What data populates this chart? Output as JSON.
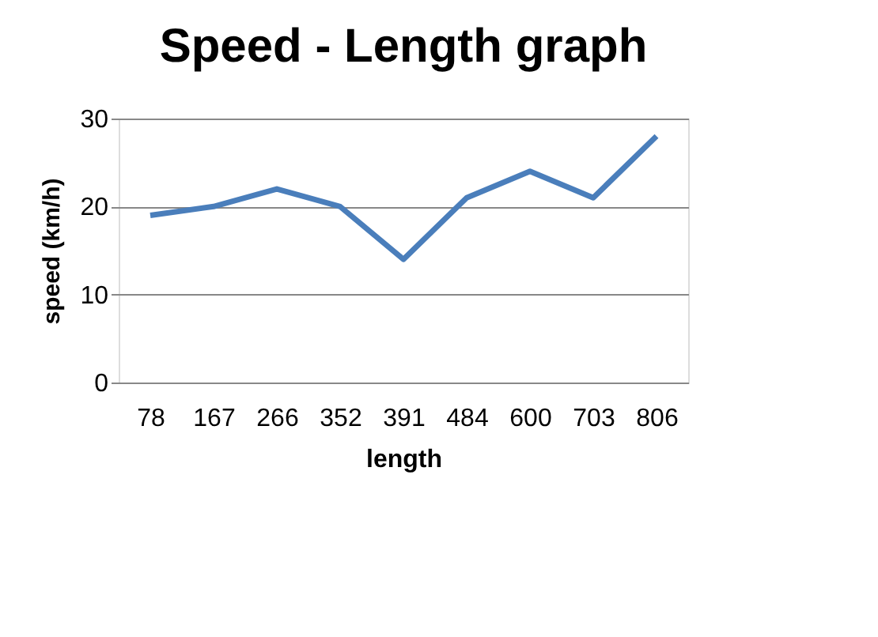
{
  "chart_data": {
    "type": "line",
    "title": "Speed - Length graph",
    "xlabel": "length",
    "ylabel": "speed (km/h)",
    "categories": [
      "78",
      "167",
      "266",
      "352",
      "391",
      "484",
      "600",
      "703",
      "806"
    ],
    "series": [
      {
        "color": "#4a7ebb",
        "values": [
          19,
          20,
          22,
          20,
          14,
          21,
          24,
          21,
          28
        ]
      }
    ],
    "ylim": [
      0,
      30
    ],
    "yticks": [
      0,
      10,
      20,
      30
    ],
    "grid": "y",
    "marker": "none",
    "line_style": "solid"
  }
}
